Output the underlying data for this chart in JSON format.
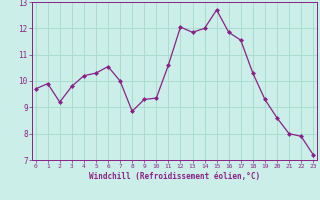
{
  "x": [
    0,
    1,
    2,
    3,
    4,
    5,
    6,
    7,
    8,
    9,
    10,
    11,
    12,
    13,
    14,
    15,
    16,
    17,
    18,
    19,
    20,
    21,
    22,
    23
  ],
  "y": [
    9.7,
    9.9,
    9.2,
    9.8,
    10.2,
    10.3,
    10.55,
    10.0,
    8.85,
    9.3,
    9.35,
    10.6,
    12.05,
    11.85,
    12.0,
    12.7,
    11.85,
    11.55,
    10.3,
    9.3,
    8.6,
    8.0,
    7.9,
    7.2
  ],
  "line_color": "#882288",
  "marker": "D",
  "marker_size": 2.0,
  "bg_color": "#cceee8",
  "grid_color": "#aaddcc",
  "xlabel": "Windchill (Refroidissement éolien,°C)",
  "xlabel_color": "#882288",
  "tick_color": "#882288",
  "ylim": [
    7,
    13
  ],
  "yticks": [
    7,
    8,
    9,
    10,
    11,
    12,
    13
  ],
  "xticks": [
    0,
    1,
    2,
    3,
    4,
    5,
    6,
    7,
    8,
    9,
    10,
    11,
    12,
    13,
    14,
    15,
    16,
    17,
    18,
    19,
    20,
    21,
    22,
    23
  ],
  "xlim": [
    -0.3,
    23.3
  ]
}
